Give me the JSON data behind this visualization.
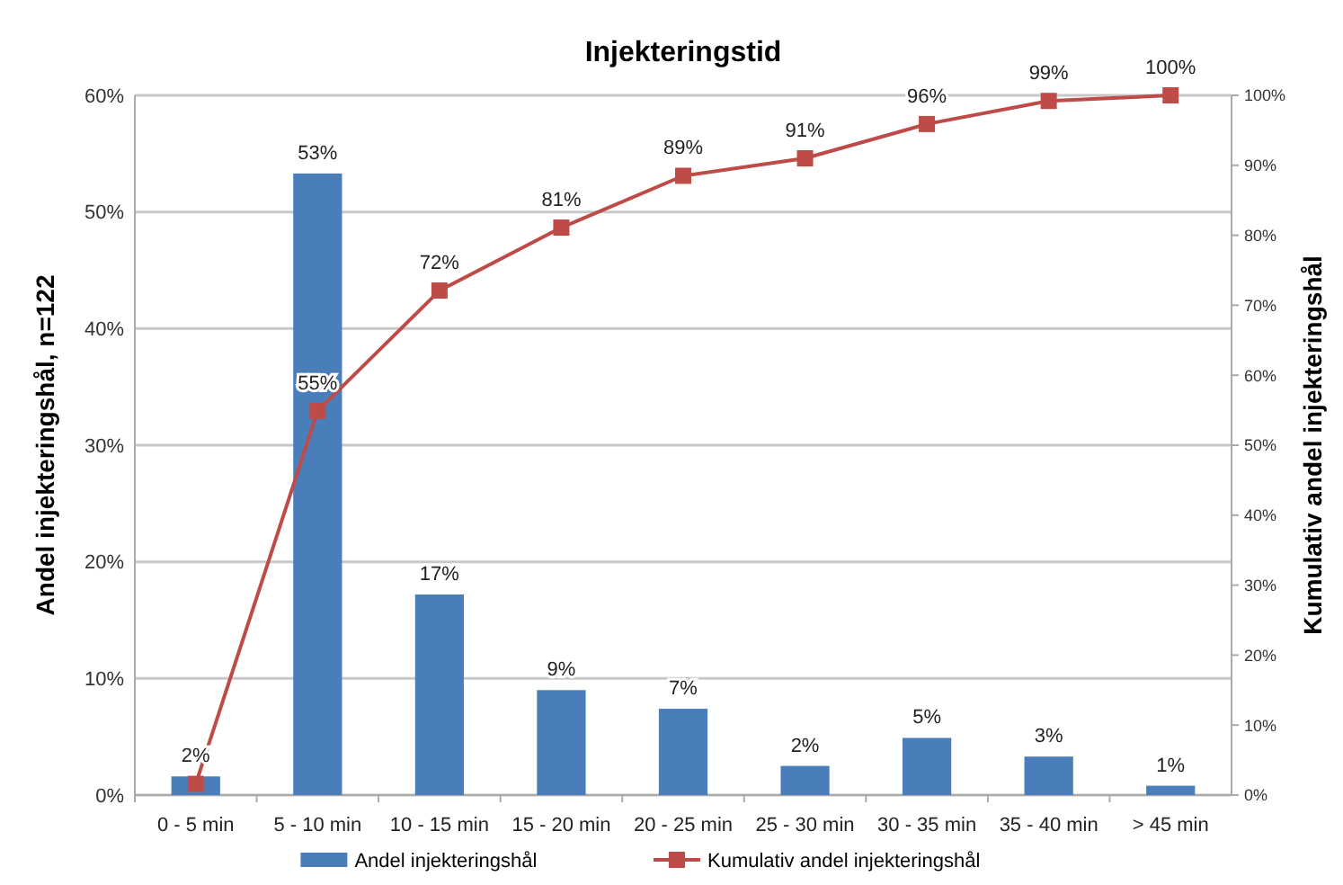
{
  "chart_data": {
    "type": "bar",
    "title": "Injekteringstid",
    "ylabel": "Andel  injekteringshål, n=122",
    "y2label": "Kumulativ andel injekteringshål",
    "categories": [
      "0 - 5 min",
      "5 - 10 min",
      "10 - 15 min",
      "15 - 20 min",
      "20 - 25 min",
      "25 - 30 min",
      "30 - 35 min",
      "35 - 40 min",
      "> 45 min"
    ],
    "series": [
      {
        "name": "Andel injekteringshål",
        "color": "#4a7ebb",
        "values": [
          1.6,
          53.3,
          17.2,
          9,
          7.4,
          2.5,
          4.9,
          3.3,
          0.8
        ],
        "value_labels": [
          "2%",
          "53%",
          "17%",
          "9%",
          "7%",
          "2%",
          "5%",
          "3%",
          "1%"
        ]
      },
      {
        "name": "Kumulativ andel injekteringshål",
        "type": "line",
        "axis": "y2",
        "color": "#be4b48",
        "marker": "square",
        "values": [
          1.6,
          54.9,
          72.1,
          81.1,
          88.5,
          91,
          95.9,
          99.2,
          100
        ],
        "value_labels": [
          null,
          "55%",
          "72%",
          "81%",
          "89%",
          "91%",
          "96%",
          "99%",
          "100%"
        ]
      }
    ],
    "ylim": [
      0,
      60
    ],
    "yticks": [
      {
        "value": 0,
        "label": "0%"
      },
      {
        "value": 10,
        "label": "10%"
      },
      {
        "value": 20,
        "label": "20%"
      },
      {
        "value": 30,
        "label": "30%"
      },
      {
        "value": 40,
        "label": "40%"
      },
      {
        "value": 50,
        "label": "50%"
      },
      {
        "value": 60,
        "label": "60%"
      }
    ],
    "y2lim": [
      0,
      100
    ],
    "y2ticks": [
      {
        "value": 0,
        "label": "0%"
      },
      {
        "value": 10,
        "label": "10%"
      },
      {
        "value": 20,
        "label": "20%"
      },
      {
        "value": 30,
        "label": "30%"
      },
      {
        "value": 40,
        "label": "40%"
      },
      {
        "value": 50,
        "label": "50%"
      },
      {
        "value": 60,
        "label": "60%"
      },
      {
        "value": 70,
        "label": "70%"
      },
      {
        "value": 80,
        "label": "80%"
      },
      {
        "value": 90,
        "label": "90%"
      },
      {
        "value": 100,
        "label": "100%"
      }
    ],
    "grid": "y",
    "legend": "bottom"
  }
}
